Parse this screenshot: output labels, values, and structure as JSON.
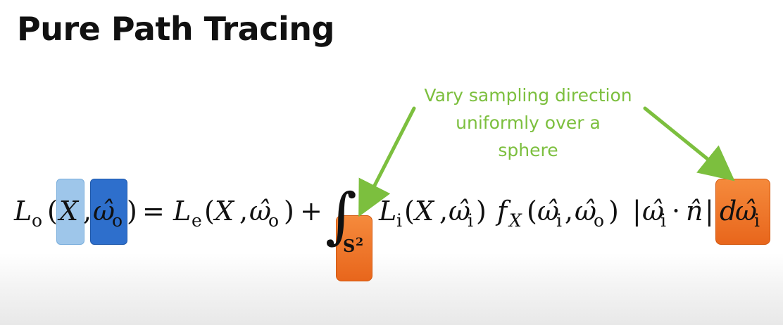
{
  "slide": {
    "title": "Pure Path Tracing"
  },
  "annotation": {
    "lines": [
      "Vary sampling direction",
      "uniformly over a",
      "sphere"
    ],
    "color": "#7cbf3e"
  },
  "highlights": {
    "x_color": "#9ec6ea",
    "omega_o_color": "#2e6fcc",
    "sphere_domain_color": "#f07a2c",
    "d_omega_color": "#f07a2c"
  },
  "equation": {
    "L": "L",
    "o": "o",
    "e": "e",
    "i": "i",
    "S": "S",
    "two": "2",
    "f": "f",
    "X": "X",
    "omega_hat": "ω̂",
    "n_hat": "n̂",
    "d": "d",
    "open": "(",
    "close": ")",
    "comma": ",",
    "eq": "=",
    "plus": "+",
    "integral": "∫",
    "dot": "·",
    "bar": "|"
  }
}
